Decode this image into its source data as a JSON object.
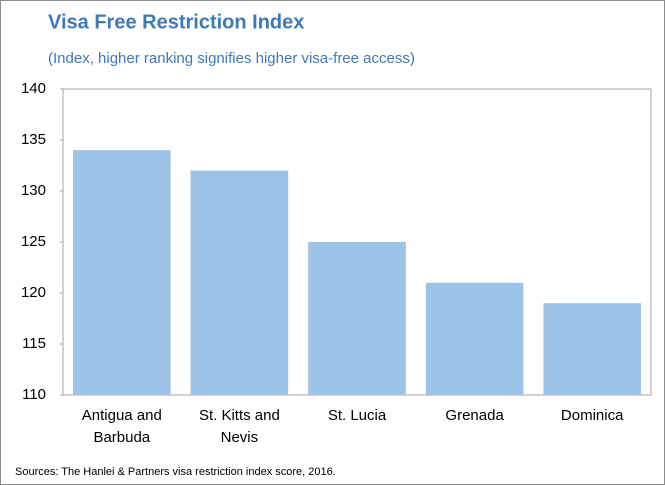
{
  "chart_data": {
    "type": "bar",
    "title": "Visa Free Restriction Index",
    "subtitle": "(Index, higher ranking signifies higher visa-free access)",
    "categories": [
      "Antigua and Barbuda",
      "St. Kitts and Nevis",
      "St. Lucia",
      "Grenada",
      "Dominica"
    ],
    "values": [
      134,
      132,
      125,
      121,
      119
    ],
    "color": "#9dc3e6",
    "ylim": [
      110,
      140
    ],
    "yticks": [
      110,
      115,
      120,
      125,
      130,
      135,
      140
    ],
    "grid": false,
    "source": "Sources: The Hanlei & Partners visa restriction index score, 2016."
  }
}
